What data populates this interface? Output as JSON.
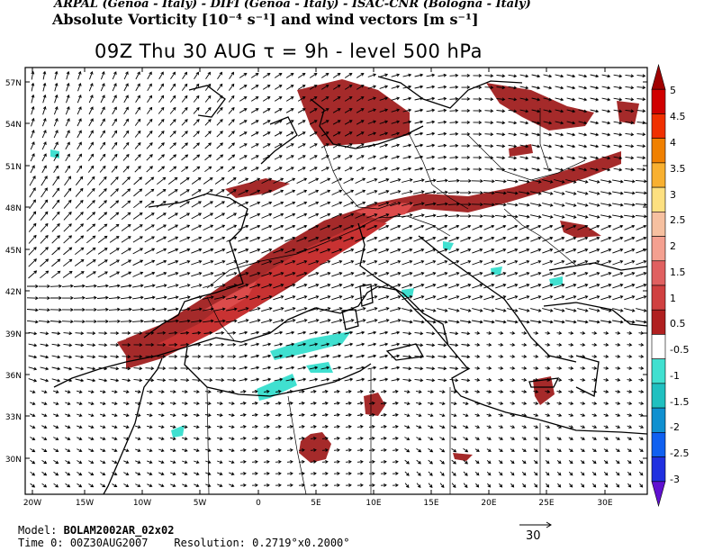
{
  "header": {
    "credits": "ARPAL (Genoa - Italy)  -  DIFI (Genoa - Italy)  -  ISAC-CNR (Bologna - Italy)",
    "field_title": "Absolute Vorticity [10⁻⁴ s⁻¹] and wind vectors [m s⁻¹]",
    "run_line": "09Z Thu 30 AUG  τ = 9h  -  level 500 hPa"
  },
  "map": {
    "lat_labels": [
      "57N",
      "54N",
      "51N",
      "48N",
      "45N",
      "42N",
      "39N",
      "36N",
      "33N",
      "30N"
    ],
    "lon_labels": [
      "20W",
      "15W",
      "10W",
      "5W",
      "0",
      "5E",
      "10E",
      "15E",
      "20E",
      "25E",
      "30E"
    ],
    "colors": {
      "positive_dark": "#a52a2a",
      "positive_mid": "#c83232",
      "positive_light": "#dc4b4b",
      "negative_light": "#40e0d0",
      "vector": "#000000",
      "coast": "#000000"
    }
  },
  "colorbar": {
    "labels": [
      "5",
      "4.5",
      "4",
      "3.5",
      "3",
      "2.5",
      "2",
      "1.5",
      "1",
      "0.5",
      "-0.5",
      "-1",
      "-1.5",
      "-2",
      "-2.5",
      "-3"
    ],
    "colors": [
      "#a00000",
      "#d00000",
      "#f03000",
      "#f08000",
      "#f8b030",
      "#fde080",
      "#f6c0a0",
      "#f4a090",
      "#e06060",
      "#d04040",
      "#b02020",
      "#ffffff",
      "#40e0d0",
      "#20c0c0",
      "#1090d0",
      "#1060f0",
      "#2030e0",
      "#6010d0"
    ]
  },
  "footer": {
    "model_label": "Model:",
    "model_value": "BOLAM2002AR_02x02",
    "time_label": "Time 0:",
    "time_value": "00Z30AUG2007",
    "resolution_label": "Resolution:",
    "resolution_value": "0.2719°x0.2000°",
    "reference_vector": "30"
  }
}
